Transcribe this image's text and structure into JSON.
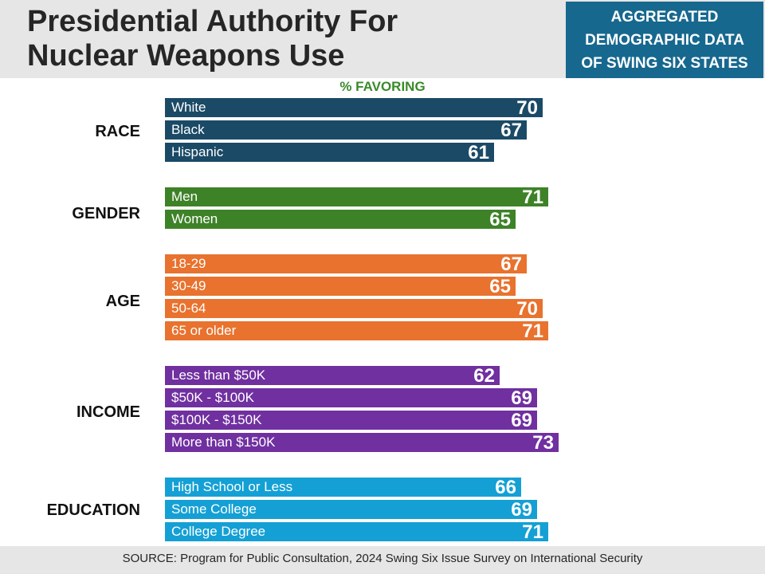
{
  "title": "Presidential Authority For\nNuclear Weapons Use",
  "badge": "AGGREGATED\nDEMOGRAPHIC DATA\nOF SWING SIX STATES",
  "source": "SOURCE: Program for Public Consultation, 2024 Swing Six Issue Survey on International Security",
  "colors": {
    "race": "#1b4a67",
    "gender": "#3e8228",
    "age": "#e8722e",
    "income": "#7030a0",
    "education": "#14a0d5",
    "badge": "#17688f",
    "header_bg": "#e6e6e6",
    "subtitle": "#3a8a2a"
  },
  "chart_data": {
    "type": "bar",
    "orientation": "horizontal",
    "title": "",
    "subtitle": "% FAVORING",
    "xlim": [
      0,
      100
    ],
    "grid": false,
    "groups": [
      {
        "name": "RACE",
        "color_key": "race",
        "items": [
          {
            "label": "White",
            "value": 70
          },
          {
            "label": "Black",
            "value": 67
          },
          {
            "label": "Hispanic",
            "value": 61
          }
        ]
      },
      {
        "name": "GENDER",
        "color_key": "gender",
        "items": [
          {
            "label": "Men",
            "value": 71
          },
          {
            "label": "Women",
            "value": 65
          }
        ]
      },
      {
        "name": "AGE",
        "color_key": "age",
        "items": [
          {
            "label": "18-29",
            "value": 67
          },
          {
            "label": "30-49",
            "value": 65
          },
          {
            "label": "50-64",
            "value": 70
          },
          {
            "label": "65 or older",
            "value": 71
          }
        ]
      },
      {
        "name": "INCOME",
        "color_key": "income",
        "items": [
          {
            "label": "Less than $50K",
            "value": 62
          },
          {
            "label": "$50K - $100K",
            "value": 69
          },
          {
            "label": "$100K - $150K",
            "value": 69
          },
          {
            "label": "More than $150K",
            "value": 73
          }
        ]
      },
      {
        "name": "EDUCATION",
        "color_key": "education",
        "items": [
          {
            "label": "High School or Less",
            "value": 66
          },
          {
            "label": "Some College",
            "value": 69
          },
          {
            "label": "College Degree",
            "value": 71
          }
        ]
      }
    ]
  }
}
